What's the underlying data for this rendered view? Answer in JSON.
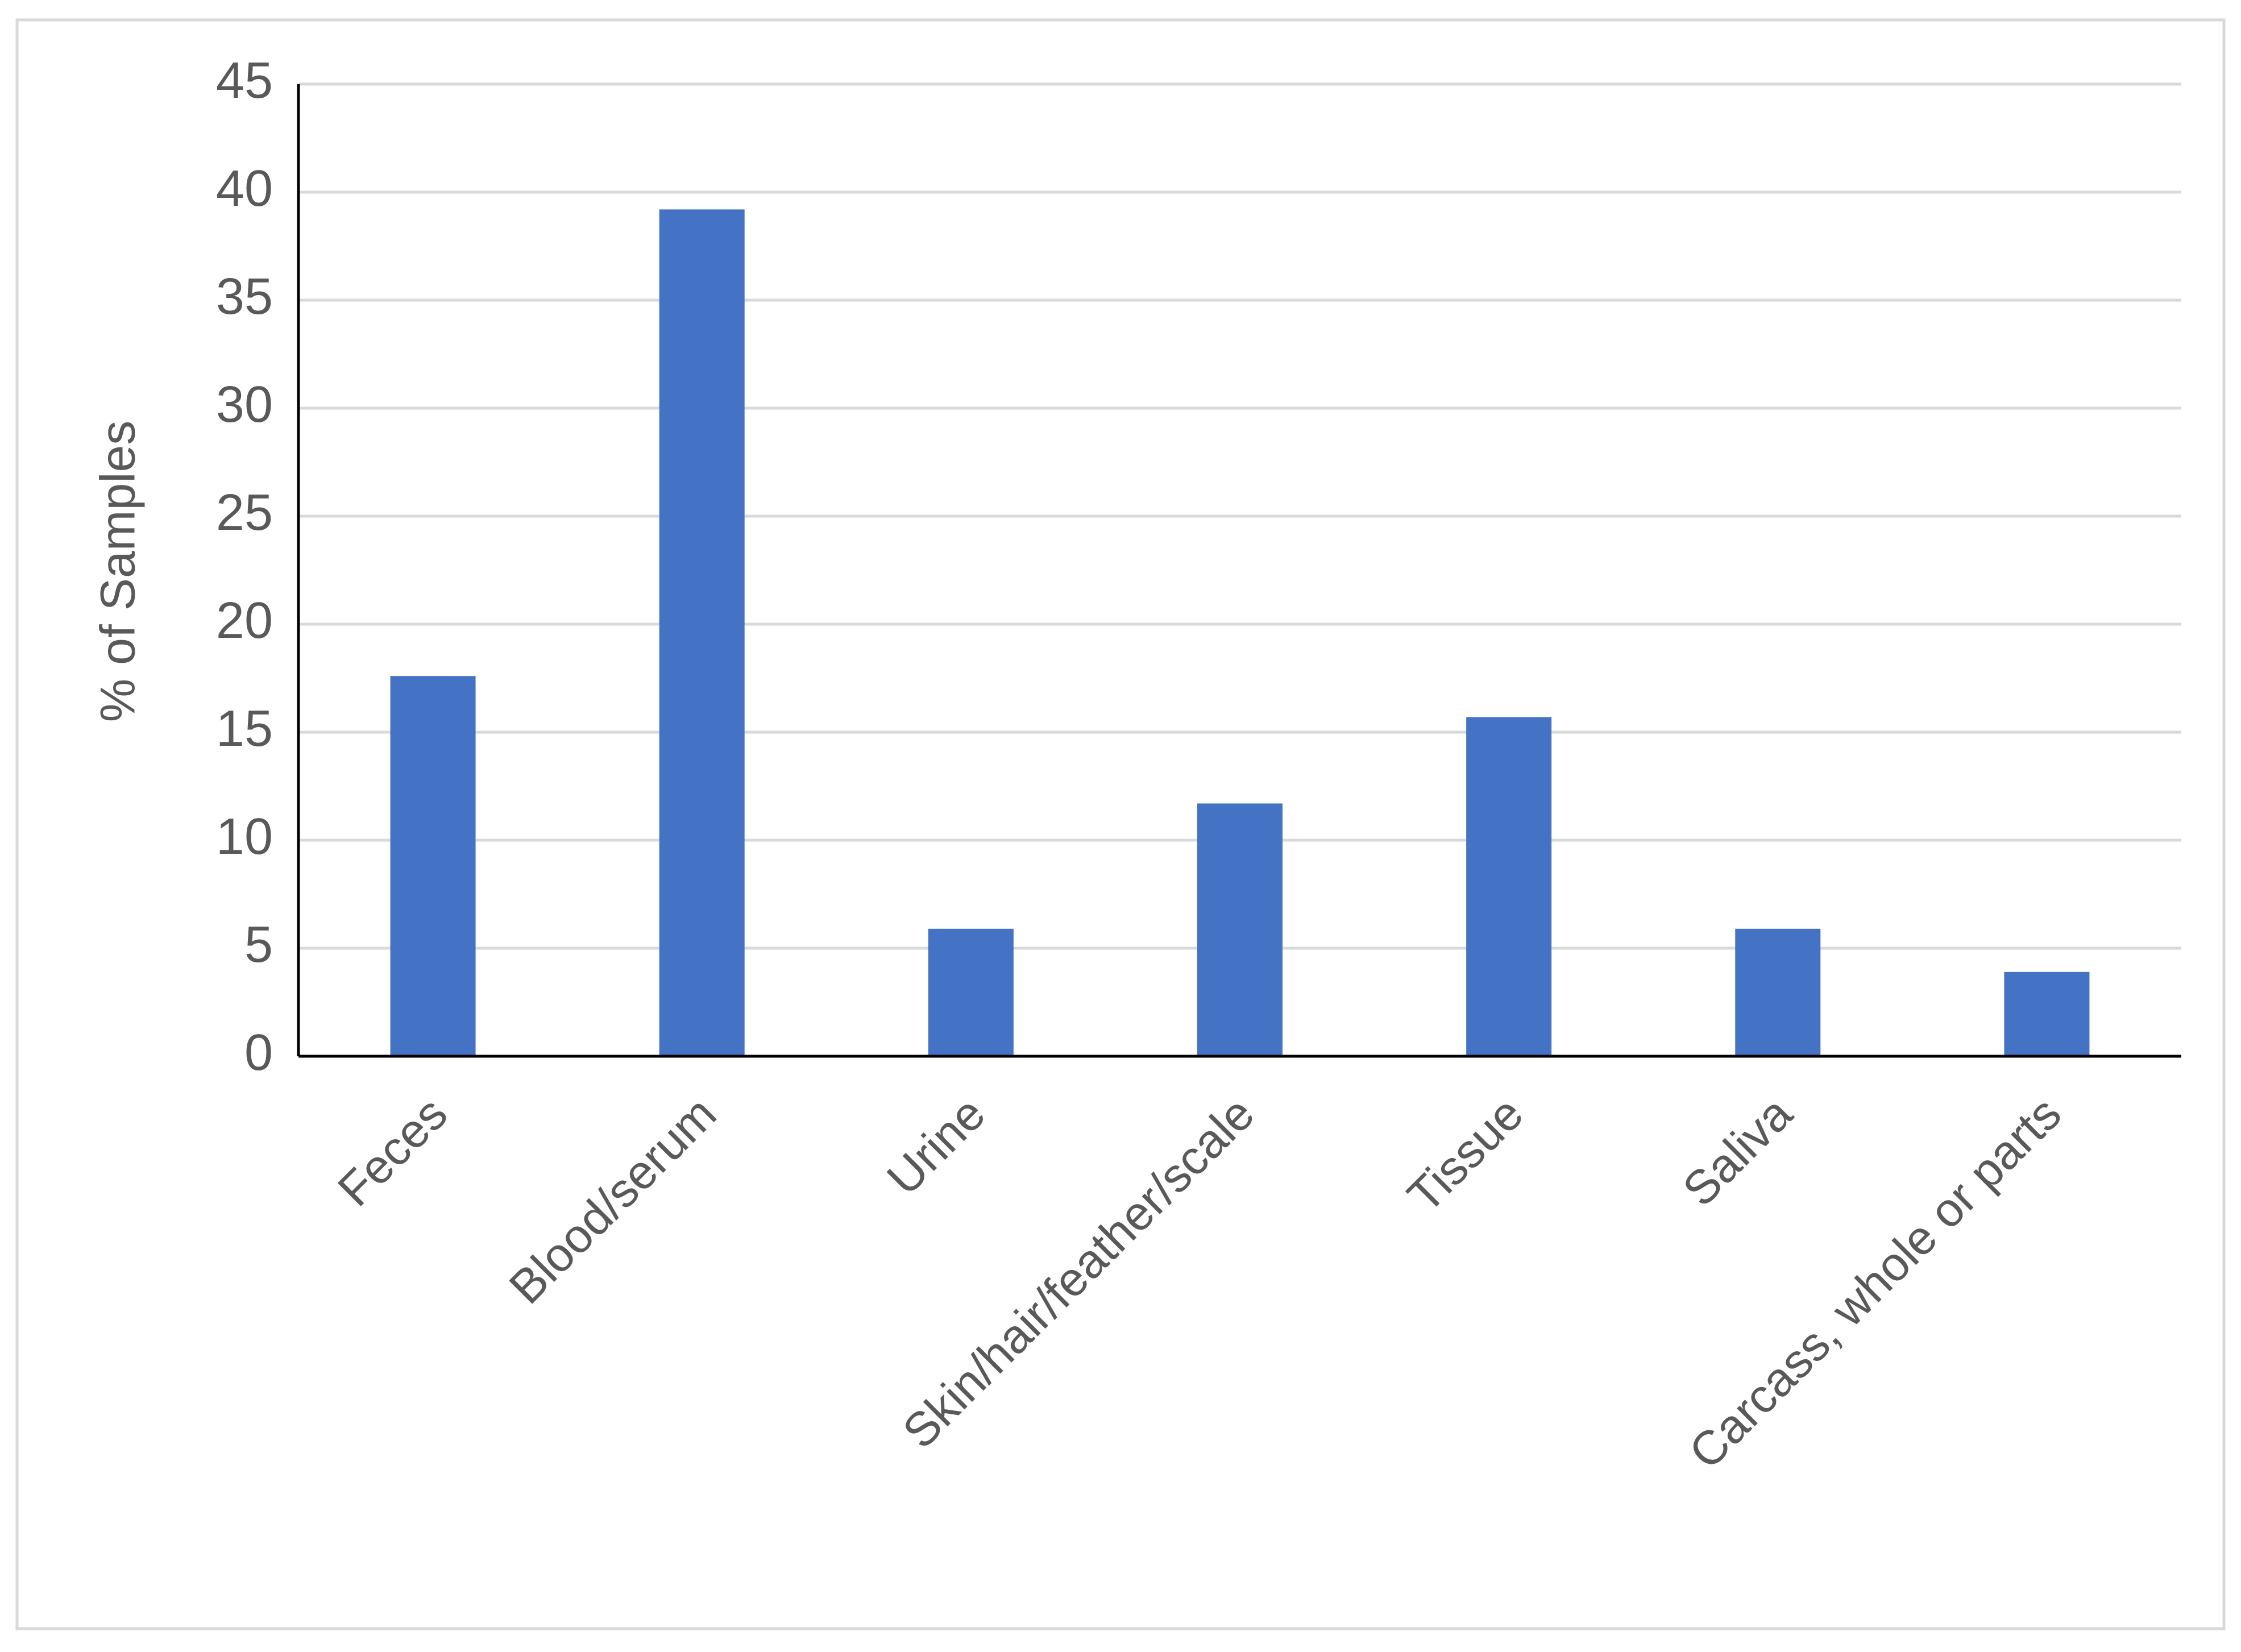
{
  "chart_data": {
    "type": "bar",
    "y_label": "% of Samples",
    "categories": [
      "Feces",
      "Blood/serum",
      "Urine",
      "Skin/hair/feather/scale",
      "Tissue",
      "Saliva",
      "Carcass, whole or parts"
    ],
    "values": [
      17.6,
      39.2,
      5.9,
      11.7,
      15.7,
      5.9,
      3.9
    ],
    "color": "#4472c4",
    "ylim": [
      0,
      45
    ],
    "yticks": [
      0,
      5,
      10,
      15,
      20,
      25,
      30,
      35,
      40,
      45
    ],
    "grid": true
  }
}
